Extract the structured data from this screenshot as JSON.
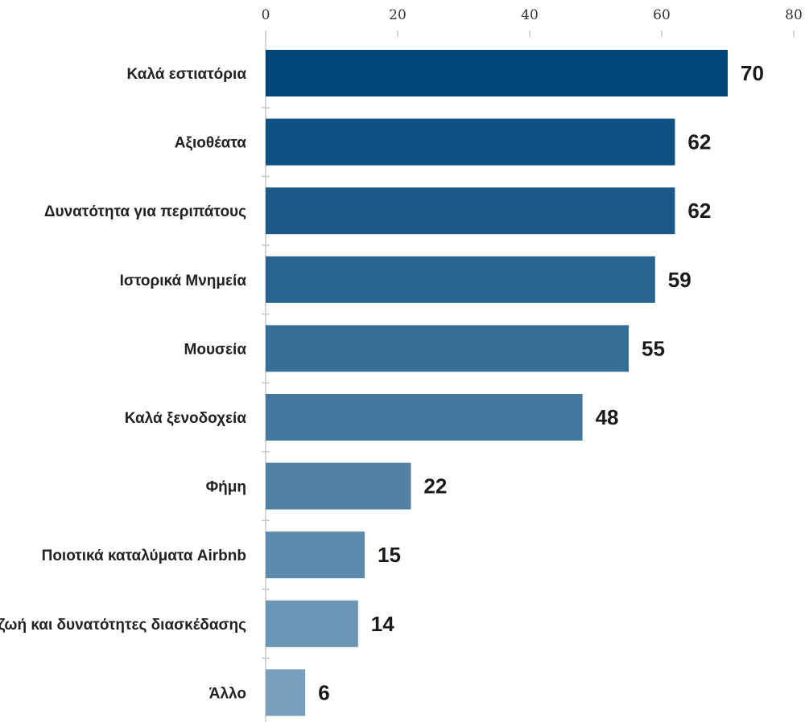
{
  "chart_data": {
    "type": "bar",
    "orientation": "horizontal",
    "categories": [
      "Καλά εστιατόρια",
      "Αξιοθέατα",
      "Δυνατότητα για περιπάτους",
      "Ιστορικά Μνημεία",
      "Μουσεία",
      "Καλά ξενοδοχεία",
      "Φήμη",
      "Ποιοτικά καταλύματα Airbnb",
      "Νυχτερινή ζωή και δυνατότητες διασκέδασης",
      "Άλλο"
    ],
    "values": [
      70,
      62,
      62,
      59,
      55,
      48,
      22,
      15,
      14,
      6
    ],
    "value_labels": [
      "70",
      "62",
      "62",
      "59",
      "55",
      "48",
      "22",
      "15",
      "14",
      "6"
    ],
    "xticks": [
      "0",
      "20",
      "40",
      "60",
      "80"
    ],
    "xlim": [
      0,
      80
    ],
    "x_axis_position": "top",
    "grid": false,
    "legend": "none",
    "bar_color_dark": "#00467a",
    "bar_color_light": "#789fbb"
  }
}
